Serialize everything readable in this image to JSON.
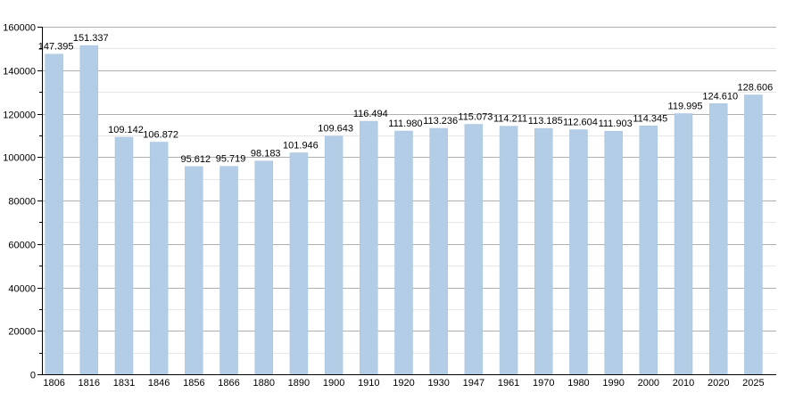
{
  "chart_data": {
    "type": "bar",
    "categories": [
      "1806",
      "1816",
      "1831",
      "1846",
      "1856",
      "1866",
      "1880",
      "1890",
      "1900",
      "1910",
      "1920",
      "1930",
      "1947",
      "1961",
      "1970",
      "1980",
      "1990",
      "2000",
      "2010",
      "2020",
      "2025"
    ],
    "values": [
      147395,
      151337,
      109142,
      106872,
      95612,
      95719,
      98183,
      101946,
      109643,
      116494,
      111980,
      113236,
      115073,
      114211,
      113185,
      112604,
      111903,
      114345,
      119995,
      124610,
      128606
    ],
    "data_labels": [
      "147.395",
      "151.337",
      "109.142",
      "106.872",
      "95.612",
      "95.719",
      "98.183",
      "101.946",
      "109.643",
      "116.494",
      "111.980",
      "113.236",
      "115.073",
      "114.211",
      "113.185",
      "112.604",
      "111.903",
      "114.345",
      "119.995",
      "124.610",
      "128.606"
    ],
    "y_ticks": [
      "0",
      "20000",
      "40000",
      "60000",
      "80000",
      "100000",
      "120000",
      "140000",
      "160000"
    ],
    "ylim": [
      0,
      160000
    ],
    "title": "",
    "xlabel": "",
    "ylabel": "",
    "grid": true,
    "bar_color": "#b3cde6",
    "bar_edge_color": "#a4c2e0",
    "grid_color": "#b0b0b0",
    "minor_grid_color": "#e6e6e6"
  }
}
